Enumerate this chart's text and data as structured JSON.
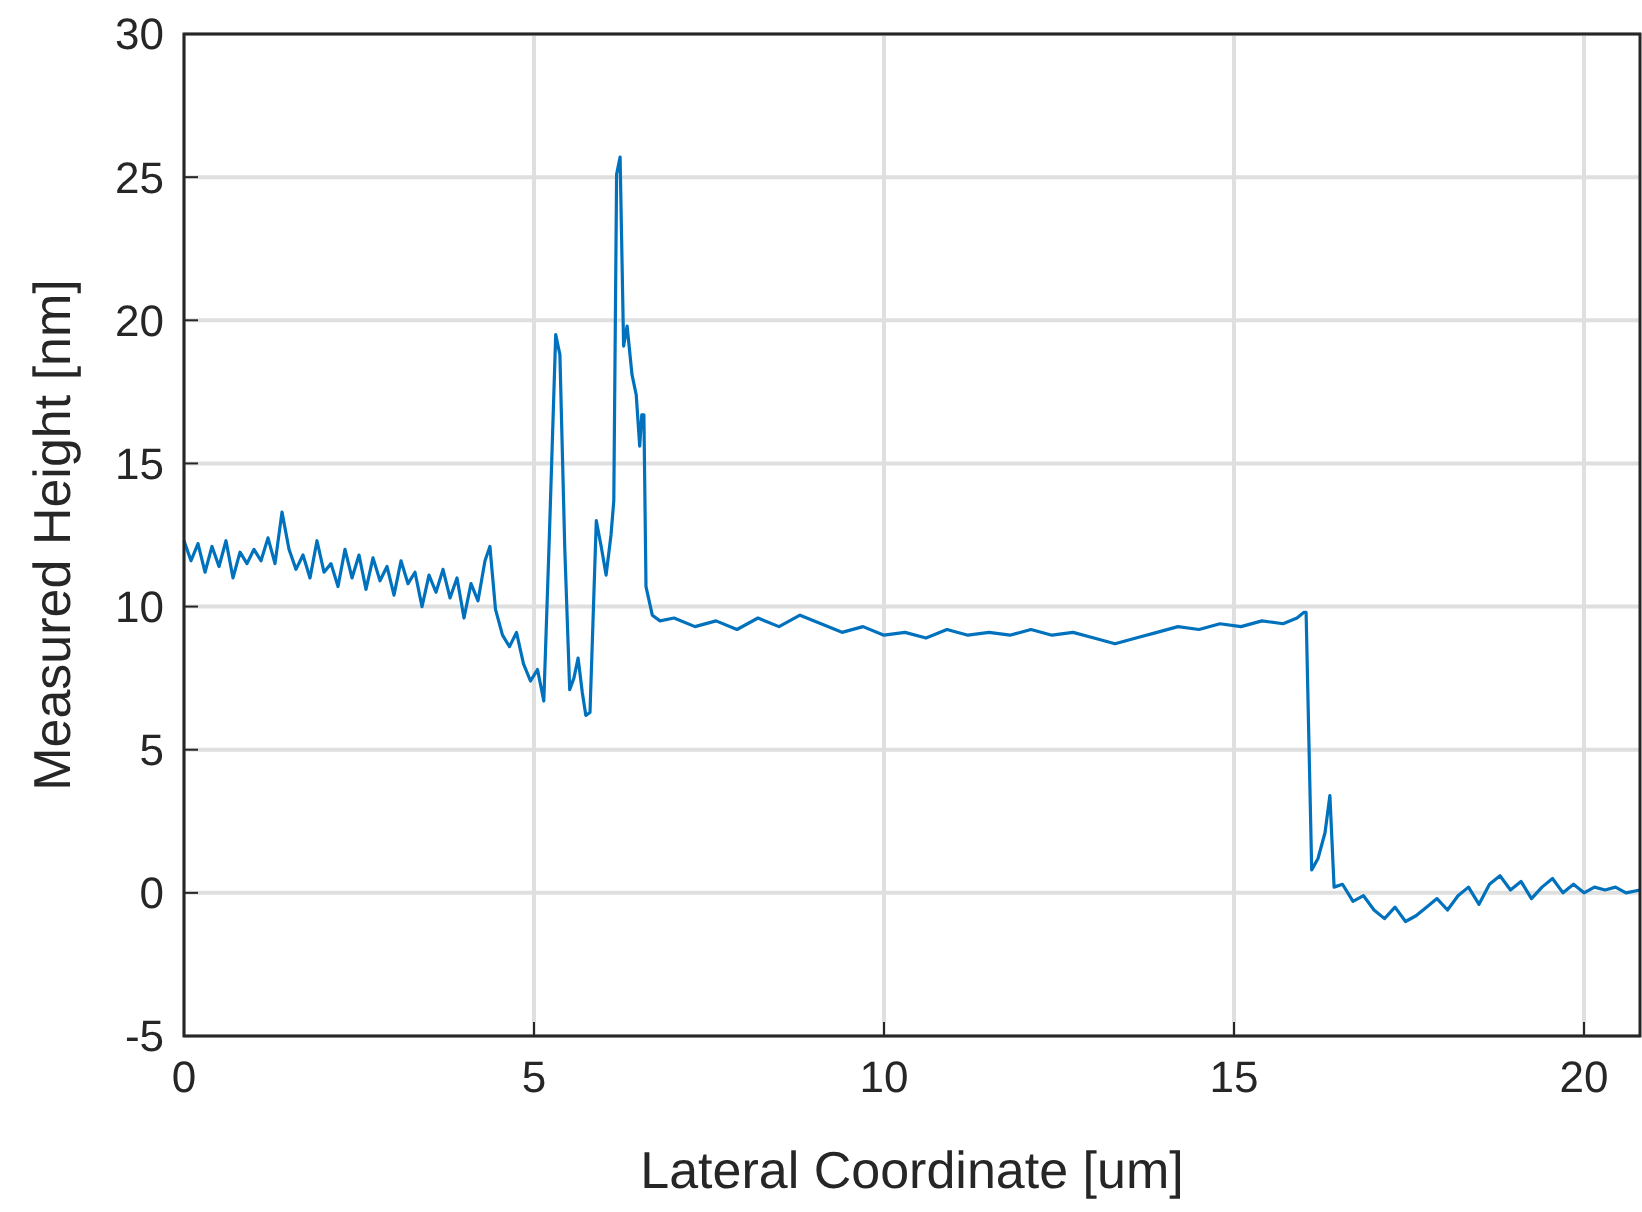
{
  "chart_data": {
    "type": "line",
    "xlabel": "Lateral Coordinate [um]",
    "ylabel": "Measured Height [nm]",
    "xlim": [
      0,
      20.8
    ],
    "ylim": [
      -5,
      30
    ],
    "xticks": [
      0,
      5,
      10,
      15,
      20
    ],
    "yticks": [
      -5,
      0,
      5,
      10,
      15,
      20,
      25,
      30
    ],
    "grid": true,
    "series": [
      {
        "color": "#0072bd",
        "x": [
          0,
          0.1,
          0.2,
          0.3,
          0.4,
          0.5,
          0.6,
          0.7,
          0.8,
          0.9,
          1.0,
          1.1,
          1.2,
          1.3,
          1.4,
          1.5,
          1.6,
          1.7,
          1.8,
          1.9,
          2.0,
          2.1,
          2.2,
          2.3,
          2.4,
          2.5,
          2.6,
          2.7,
          2.8,
          2.9,
          3.0,
          3.1,
          3.2,
          3.3,
          3.4,
          3.5,
          3.6,
          3.7,
          3.8,
          3.9,
          4.0,
          4.1,
          4.2,
          4.3,
          4.37,
          4.45,
          4.55,
          4.65,
          4.75,
          4.85,
          4.95,
          5.05,
          5.14,
          5.22,
          5.31,
          5.37,
          5.44,
          5.51,
          5.57,
          5.63,
          5.69,
          5.74,
          5.8,
          5.89,
          5.96,
          6.03,
          6.1,
          6.14,
          6.18,
          6.23,
          6.28,
          6.33,
          6.4,
          6.46,
          6.51,
          6.54,
          6.57,
          6.6,
          6.69,
          6.8,
          7.0,
          7.3,
          7.6,
          7.9,
          8.2,
          8.5,
          8.8,
          9.1,
          9.4,
          9.7,
          10.0,
          10.3,
          10.6,
          10.9,
          11.2,
          11.5,
          11.8,
          12.1,
          12.4,
          12.7,
          13.0,
          13.3,
          13.6,
          13.9,
          14.2,
          14.5,
          14.8,
          15.1,
          15.4,
          15.7,
          15.9,
          16.0,
          16.03,
          16.11,
          16.2,
          16.3,
          16.37,
          16.43,
          16.55,
          16.7,
          16.85,
          17.0,
          17.15,
          17.3,
          17.45,
          17.6,
          17.75,
          17.9,
          18.05,
          18.2,
          18.35,
          18.5,
          18.65,
          18.8,
          18.95,
          19.1,
          19.25,
          19.4,
          19.55,
          19.7,
          19.85,
          20.0,
          20.15,
          20.3,
          20.45,
          20.6,
          20.8
        ],
        "values": [
          12.3,
          11.6,
          12.2,
          11.2,
          12.1,
          11.4,
          12.3,
          11.0,
          11.9,
          11.5,
          12.0,
          11.6,
          12.4,
          11.5,
          13.3,
          12.0,
          11.3,
          11.8,
          11.0,
          12.3,
          11.2,
          11.5,
          10.7,
          12.0,
          11.0,
          11.8,
          10.6,
          11.7,
          10.9,
          11.4,
          10.4,
          11.6,
          10.8,
          11.2,
          10.0,
          11.1,
          10.5,
          11.3,
          10.3,
          11.0,
          9.6,
          10.8,
          10.2,
          11.6,
          12.1,
          9.9,
          9.0,
          8.6,
          9.1,
          8.0,
          7.4,
          7.8,
          6.7,
          12.5,
          19.5,
          18.8,
          12.0,
          7.1,
          7.5,
          8.2,
          7.0,
          6.2,
          6.3,
          13.0,
          12.1,
          11.1,
          12.5,
          13.7,
          25.1,
          25.7,
          19.1,
          19.8,
          18.1,
          17.4,
          15.6,
          16.7,
          16.7,
          10.7,
          9.7,
          9.5,
          9.6,
          9.3,
          9.5,
          9.2,
          9.6,
          9.3,
          9.7,
          9.4,
          9.1,
          9.3,
          9.0,
          9.1,
          8.9,
          9.2,
          9.0,
          9.1,
          9.0,
          9.2,
          9.0,
          9.1,
          8.9,
          8.7,
          8.9,
          9.1,
          9.3,
          9.2,
          9.4,
          9.3,
          9.5,
          9.4,
          9.6,
          9.8,
          9.8,
          0.8,
          1.2,
          2.1,
          3.4,
          0.2,
          0.3,
          -0.3,
          -0.1,
          -0.6,
          -0.9,
          -0.5,
          -1.0,
          -0.8,
          -0.5,
          -0.2,
          -0.6,
          -0.1,
          0.2,
          -0.4,
          0.3,
          0.6,
          0.1,
          0.4,
          -0.2,
          0.2,
          0.5,
          0.0,
          0.3,
          0.0,
          0.2,
          0.1,
          0.2,
          0.0,
          0.1
        ]
      }
    ]
  }
}
